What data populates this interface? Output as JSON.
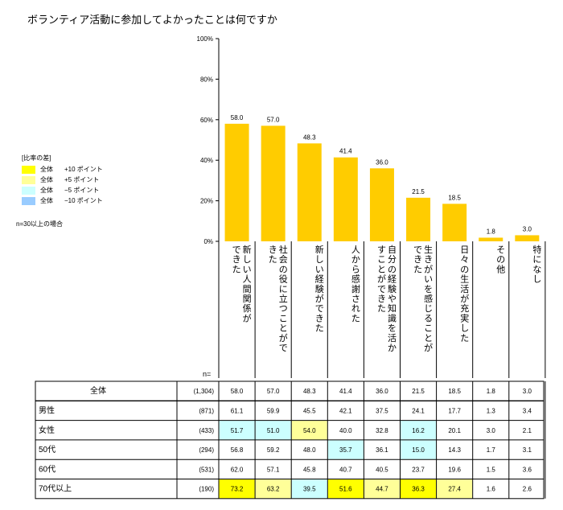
{
  "title": "ボランティア活動に参加してよかったことは何ですか",
  "legend": {
    "title": "[比率の差]",
    "items": [
      {
        "label": "全体",
        "points": "+10 ポイント",
        "color": "#ffff00"
      },
      {
        "label": "全体",
        "points": "+5 ポイント",
        "color": "#ffff99"
      },
      {
        "label": "全体",
        "points": "−5 ポイント",
        "color": "#ccffff"
      },
      {
        "label": "全体",
        "points": "−10 ポイント",
        "color": "#99ccff"
      }
    ]
  },
  "note": "n=30以上の場合",
  "n_label": "n=",
  "colors": {
    "bar": "#ffcc00",
    "up10": "#ffff00",
    "up5": "#ffff99",
    "down5": "#ccffff",
    "down10": "#99ccff"
  },
  "chart_data": {
    "type": "bar",
    "title": "ボランティア活動に参加してよかったことは何ですか",
    "categories": [
      "新しい人間関係ができた",
      "社会の役に立つことができた",
      "新しい経験ができた",
      "人から感謝された",
      "自分の経験や知識を活かすことができた",
      "生きがいを感じることができた",
      "日々の生活が充実した",
      "その他",
      "特になし"
    ],
    "category_lines": [
      [
        "新しい人間関係が",
        "できた"
      ],
      [
        "社会の役に立つことがで",
        "きた"
      ],
      [
        "新しい経験ができた"
      ],
      [
        "人から感謝された"
      ],
      [
        "自分の経験や知識を活か",
        "すことができた"
      ],
      [
        "生きがいを感じることが",
        "できた"
      ],
      [
        "日々の生活が充実した"
      ],
      [
        "その他"
      ],
      [
        "特になし"
      ]
    ],
    "values": [
      58.0,
      57.0,
      48.3,
      41.4,
      36.0,
      21.5,
      18.5,
      1.8,
      3.0
    ],
    "value_labels": [
      "58.0",
      "57.0",
      "48.3",
      "41.4",
      "36.0",
      "21.5",
      "18.5",
      "1.8",
      "3.0"
    ],
    "ylim": [
      0,
      100
    ],
    "yticks": [
      0,
      20,
      40,
      60,
      80,
      100
    ],
    "ytick_labels": [
      "0%",
      "20%",
      "40%",
      "60%",
      "80%",
      "100%"
    ],
    "grid": false
  },
  "table": {
    "rows": [
      {
        "label": "全体",
        "n": "(1,304)",
        "values": [
          "58.0",
          "57.0",
          "48.3",
          "41.4",
          "36.0",
          "21.5",
          "18.5",
          "1.8",
          "3.0"
        ],
        "highlights": [
          "",
          "",
          "",
          "",
          "",
          "",
          "",
          "",
          ""
        ]
      },
      {
        "label": "男性",
        "n": "(871)",
        "values": [
          "61.1",
          "59.9",
          "45.5",
          "42.1",
          "37.5",
          "24.1",
          "17.7",
          "1.3",
          "3.4"
        ],
        "highlights": [
          "",
          "",
          "",
          "",
          "",
          "",
          "",
          "",
          ""
        ]
      },
      {
        "label": "女性",
        "n": "(433)",
        "values": [
          "51.7",
          "51.0",
          "54.0",
          "40.0",
          "32.8",
          "16.2",
          "20.1",
          "3.0",
          "2.1"
        ],
        "highlights": [
          "down5",
          "down5",
          "up5",
          "",
          "",
          "down5",
          "",
          "",
          ""
        ]
      },
      {
        "label": "50代",
        "n": "(294)",
        "values": [
          "56.8",
          "59.2",
          "48.0",
          "35.7",
          "36.1",
          "15.0",
          "14.3",
          "1.7",
          "3.1"
        ],
        "highlights": [
          "",
          "",
          "",
          "down5",
          "",
          "down5",
          "",
          "",
          ""
        ]
      },
      {
        "label": "60代",
        "n": "(531)",
        "values": [
          "62.0",
          "57.1",
          "45.8",
          "40.7",
          "40.5",
          "23.7",
          "19.6",
          "1.5",
          "3.6"
        ],
        "highlights": [
          "",
          "",
          "",
          "",
          "",
          "",
          "",
          "",
          ""
        ]
      },
      {
        "label": "70代以上",
        "n": "(190)",
        "values": [
          "73.2",
          "63.2",
          "39.5",
          "51.6",
          "44.7",
          "36.3",
          "27.4",
          "1.6",
          "2.6"
        ],
        "highlights": [
          "up10",
          "up5",
          "down5",
          "up10",
          "up5",
          "up10",
          "up5",
          "",
          ""
        ]
      }
    ]
  }
}
